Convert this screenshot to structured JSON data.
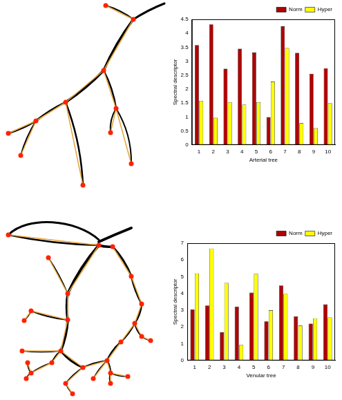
{
  "chart_data": [
    {
      "type": "bar",
      "xlabel": "Arterial tree",
      "ylabel": "Spectral descriptor",
      "categories": [
        "1",
        "2",
        "3",
        "4",
        "5",
        "6",
        "7",
        "8",
        "9",
        "10"
      ],
      "series": [
        {
          "name": "Norm",
          "color": "#b00000",
          "values": [
            3.58,
            4.32,
            2.73,
            3.45,
            3.31,
            1.0,
            4.25,
            3.3,
            2.55,
            2.75
          ]
        },
        {
          "name": "Hyper",
          "color": "#ffff00",
          "values": [
            1.58,
            0.97,
            1.53,
            1.45,
            1.53,
            2.27,
            3.47,
            0.78,
            0.6,
            1.5
          ]
        }
      ],
      "ylim": [
        0,
        4.5
      ],
      "yticks": [
        0,
        0.5,
        1,
        1.5,
        2,
        2.5,
        3,
        3.5,
        4,
        4.5
      ],
      "grid": false,
      "legend": "top"
    },
    {
      "type": "bar",
      "xlabel": "Venular tree",
      "ylabel": "Spectral descriptor",
      "categories": [
        "1",
        "2",
        "3",
        "4",
        "5",
        "6",
        "7",
        "8",
        "9",
        "10"
      ],
      "series": [
        {
          "name": "Norm",
          "color": "#b00000",
          "values": [
            3.05,
            3.28,
            1.68,
            3.22,
            4.05,
            2.33,
            4.48,
            2.63,
            2.2,
            3.35
          ]
        },
        {
          "name": "Hyper",
          "color": "#ffff00",
          "values": [
            5.2,
            6.68,
            4.63,
            0.93,
            5.18,
            3.0,
            3.97,
            2.08,
            2.52,
            2.57
          ]
        }
      ],
      "ylim": [
        0,
        7
      ],
      "yticks": [
        0,
        1,
        2,
        3,
        4,
        5,
        6,
        7
      ],
      "grid": false,
      "legend": "top"
    }
  ]
}
